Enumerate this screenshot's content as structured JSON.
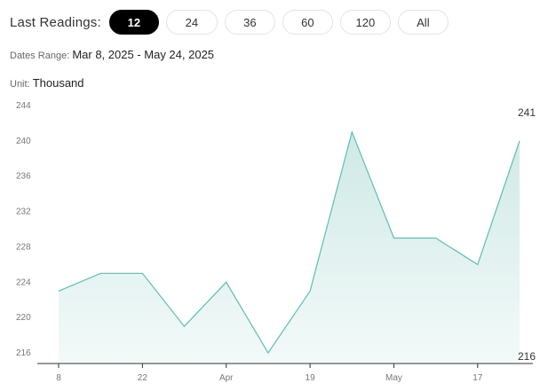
{
  "header": {
    "title": "Last Readings:",
    "options": [
      "12",
      "24",
      "36",
      "60",
      "120",
      "All"
    ],
    "selected": "12"
  },
  "dates_range": {
    "label": "Dates Range:",
    "value": "Mar 8, 2025 - May 24, 2025"
  },
  "unit": {
    "label": "Unit:",
    "value": "Thousand"
  },
  "colors": {
    "line": "#5bbfb2",
    "fill_top": "#cfe9e6",
    "fill_bottom": "#f3faf9",
    "active_pill": "#000000"
  },
  "chart_data": {
    "type": "area",
    "x": [
      "2025-03-08",
      "2025-03-15",
      "2025-03-22",
      "2025-03-29",
      "2025-04-05",
      "2025-04-12",
      "2025-04-19",
      "2025-04-26",
      "2025-05-03",
      "2025-05-10",
      "2025-05-17",
      "2025-05-24"
    ],
    "series": [
      {
        "values": [
          223,
          225,
          225,
          219,
          224,
          216,
          223,
          241,
          229,
          229,
          226,
          240
        ]
      }
    ],
    "x_ticks": [
      "8",
      "22",
      "Apr",
      "19",
      "May",
      "17"
    ],
    "y_ticks": [
      "244",
      "240",
      "236",
      "232",
      "228",
      "224",
      "220",
      "216"
    ],
    "ylim": [
      216,
      244
    ],
    "end_labels": {
      "max": "241",
      "min": "216"
    },
    "grid": false
  }
}
